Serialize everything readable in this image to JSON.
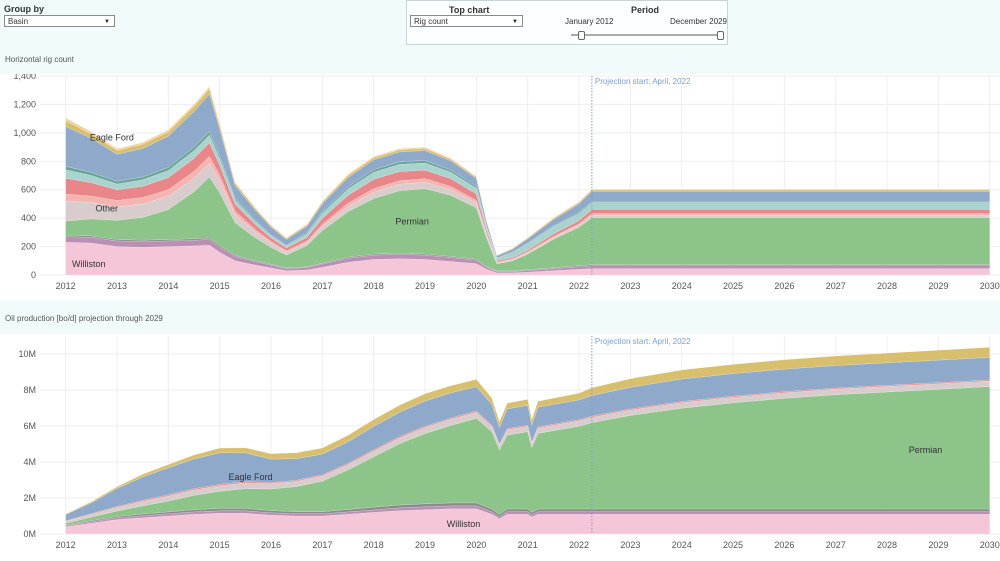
{
  "controls": {
    "group_by_label": "Group by",
    "group_by_value": "Basin",
    "top_chart_label": "Top chart",
    "top_chart_value": "Rig count",
    "period_label": "Period",
    "period_start": "January 2012",
    "period_end": "December 2029",
    "period_range": [
      0,
      1
    ]
  },
  "colors": {
    "background_band": "#f1fbfb",
    "williston": "#f5c5d8",
    "permian": "#8cc48a",
    "eagle_ford": "#8fa9cb",
    "other": "#d8cccc",
    "top": "#d8bf6e",
    "projection_line": "#7a9fd0"
  },
  "chart_data": [
    {
      "type": "area",
      "title": "Horizontal rig count",
      "annotation": "Projection start: April, 2022",
      "projection_x": 2022.25,
      "xlim": [
        2011.5,
        2030.2
      ],
      "ylim": [
        0,
        1400
      ],
      "x_ticks": [
        2012,
        2013,
        2014,
        2015,
        2016,
        2017,
        2018,
        2019,
        2020,
        2021,
        2022,
        2023,
        2024,
        2025,
        2026,
        2027,
        2028,
        2029,
        2030
      ],
      "x_tick_labels": [
        "2012",
        "2013",
        "2014",
        "2015",
        "2016",
        "2017",
        "2018",
        "2019",
        "2020",
        "2021",
        "2022",
        "2023",
        "2024",
        "2025",
        "2026",
        "2027",
        "2028",
        "2029",
        "2030"
      ],
      "y_ticks": [
        0,
        200,
        400,
        600,
        800,
        1000,
        1200,
        1400
      ],
      "y_tick_labels": [
        "0",
        "200",
        "400",
        "600",
        "800",
        "1,000",
        "1,200",
        "1,400"
      ],
      "grid": true,
      "x": [
        2012,
        2012.5,
        2013,
        2013.5,
        2014,
        2014.5,
        2014.8,
        2015,
        2015.3,
        2015.7,
        2016,
        2016.3,
        2016.7,
        2017,
        2017.5,
        2018,
        2018.5,
        2019,
        2019.5,
        2020,
        2020.2,
        2020.4,
        2020.7,
        2021,
        2021.5,
        2022,
        2022.25,
        2023,
        2024,
        2025,
        2026,
        2027,
        2028,
        2029,
        2030
      ],
      "series": [
        {
          "name": "Williston",
          "color": "#f5c5d8",
          "values": [
            230,
            225,
            200,
            195,
            200,
            205,
            210,
            160,
            100,
            70,
            50,
            30,
            35,
            55,
            90,
            110,
            115,
            110,
            95,
            80,
            40,
            15,
            15,
            20,
            30,
            40,
            45,
            45,
            45,
            45,
            45,
            45,
            45,
            45,
            45
          ]
        },
        {
          "name": "",
          "color": "#b98fb3",
          "values": [
            40,
            40,
            40,
            40,
            40,
            40,
            40,
            38,
            30,
            25,
            20,
            15,
            18,
            22,
            28,
            30,
            30,
            30,
            28,
            25,
            15,
            10,
            10,
            12,
            15,
            18,
            20,
            20,
            20,
            20,
            20,
            20,
            20,
            20,
            20
          ]
        },
        {
          "name": "",
          "color": "#8b8b8b",
          "values": [
            10,
            10,
            10,
            10,
            10,
            10,
            10,
            10,
            8,
            6,
            5,
            5,
            5,
            6,
            8,
            8,
            8,
            8,
            8,
            7,
            5,
            4,
            4,
            5,
            6,
            8,
            8,
            8,
            8,
            8,
            8,
            8,
            8,
            8,
            8
          ]
        },
        {
          "name": "Permian",
          "color": "#8cc48a",
          "values": [
            100,
            120,
            135,
            160,
            210,
            330,
            430,
            370,
            230,
            160,
            120,
            90,
            150,
            230,
            320,
            390,
            440,
            460,
            430,
            360,
            200,
            50,
            70,
            110,
            200,
            270,
            330,
            330,
            330,
            330,
            330,
            330,
            330,
            330,
            330
          ]
        },
        {
          "name": "Other",
          "color": "#d8cccc",
          "values": [
            140,
            115,
            95,
            95,
            95,
            95,
            95,
            85,
            55,
            40,
            30,
            20,
            20,
            28,
            35,
            45,
            45,
            45,
            40,
            35,
            20,
            8,
            8,
            10,
            12,
            15,
            18,
            18,
            18,
            18,
            18,
            18,
            18,
            18,
            18
          ]
        },
        {
          "name": "",
          "color": "#f5b4b0",
          "values": [
            50,
            45,
            45,
            45,
            45,
            50,
            50,
            40,
            25,
            18,
            12,
            10,
            12,
            18,
            25,
            25,
            25,
            25,
            22,
            18,
            10,
            4,
            5,
            6,
            8,
            10,
            12,
            12,
            12,
            12,
            12,
            12,
            12,
            12,
            12
          ]
        },
        {
          "name": "",
          "color": "#e8868a",
          "values": [
            110,
            95,
            75,
            80,
            85,
            90,
            95,
            70,
            50,
            35,
            25,
            20,
            25,
            40,
            55,
            65,
            65,
            60,
            55,
            45,
            25,
            10,
            10,
            12,
            18,
            22,
            28,
            28,
            28,
            28,
            28,
            28,
            28,
            28,
            28
          ]
        },
        {
          "name": "",
          "color": "#a9d3cf",
          "values": [
            60,
            50,
            40,
            45,
            50,
            55,
            55,
            45,
            30,
            22,
            15,
            15,
            25,
            35,
            45,
            50,
            50,
            50,
            45,
            40,
            22,
            15,
            35,
            45,
            50,
            50,
            50,
            50,
            50,
            50,
            50,
            50,
            50,
            50,
            50
          ]
        },
        {
          "name": "",
          "color": "#6aa597",
          "values": [
            25,
            22,
            20,
            20,
            22,
            25,
            25,
            20,
            12,
            8,
            5,
            5,
            8,
            12,
            15,
            18,
            18,
            18,
            16,
            14,
            8,
            4,
            4,
            5,
            6,
            8,
            8,
            8,
            8,
            8,
            8,
            8,
            8,
            8,
            8
          ]
        },
        {
          "name": "Eagle Ford",
          "color": "#8fa9cb",
          "values": [
            280,
            240,
            190,
            200,
            220,
            250,
            265,
            190,
            90,
            70,
            55,
            40,
            45,
            55,
            65,
            70,
            70,
            70,
            65,
            55,
            30,
            15,
            20,
            30,
            45,
            60,
            70,
            70,
            70,
            70,
            70,
            70,
            70,
            70,
            70
          ]
        },
        {
          "name": "",
          "color": "#d8bf6e",
          "values": [
            40,
            30,
            25,
            30,
            30,
            35,
            35,
            25,
            15,
            12,
            10,
            8,
            10,
            12,
            15,
            15,
            15,
            15,
            12,
            10,
            6,
            4,
            5,
            6,
            8,
            10,
            10,
            10,
            10,
            10,
            10,
            10,
            10,
            10,
            10
          ]
        },
        {
          "name": "",
          "color": "#f3cf9b",
          "values": [
            20,
            15,
            12,
            12,
            14,
            15,
            15,
            12,
            8,
            6,
            4,
            4,
            5,
            6,
            8,
            8,
            8,
            8,
            6,
            5,
            3,
            2,
            3,
            3,
            4,
            5,
            5,
            5,
            5,
            5,
            5,
            5,
            5,
            5,
            5
          ]
        }
      ],
      "region_labels": [
        {
          "text": "Eagle Ford",
          "x": 2012.9,
          "y": 945
        },
        {
          "text": "Other",
          "x": 2012.8,
          "y": 445
        },
        {
          "text": "Permian",
          "x": 2018.75,
          "y": 355
        },
        {
          "text": "Williston",
          "x": 2012.45,
          "y": 55
        }
      ]
    },
    {
      "type": "area",
      "title": "Oil production [bo/d] projection through 2029",
      "annotation": "Projection start: April, 2022",
      "projection_x": 2022.25,
      "xlim": [
        2011.5,
        2030.2
      ],
      "ylim": [
        0,
        11000000
      ],
      "x_ticks": [
        2012,
        2013,
        2014,
        2015,
        2016,
        2017,
        2018,
        2019,
        2020,
        2021,
        2022,
        2023,
        2024,
        2025,
        2026,
        2027,
        2028,
        2029,
        2030
      ],
      "x_tick_labels": [
        "2012",
        "2013",
        "2014",
        "2015",
        "2016",
        "2017",
        "2018",
        "2019",
        "2020",
        "2021",
        "2022",
        "2023",
        "2024",
        "2025",
        "2026",
        "2027",
        "2028",
        "2029",
        "2030"
      ],
      "y_ticks": [
        0,
        2000000,
        4000000,
        6000000,
        8000000,
        10000000
      ],
      "y_tick_labels": [
        "0M",
        "2M",
        "4M",
        "6M",
        "8M",
        "10M"
      ],
      "grid": true,
      "x": [
        2012,
        2012.5,
        2013,
        2013.5,
        2014,
        2014.5,
        2015,
        2015.5,
        2016,
        2016.5,
        2017,
        2017.5,
        2018,
        2018.5,
        2019,
        2019.5,
        2020,
        2020.3,
        2020.45,
        2020.6,
        2021,
        2021.08,
        2021.2,
        2021.6,
        2022,
        2022.25,
        2023,
        2024,
        2025,
        2026,
        2027,
        2028,
        2029,
        2030
      ],
      "series": [
        {
          "name": "Williston",
          "color": "#f5c5d8",
          "values": [
            400000,
            600000,
            800000,
            900000,
            1000000,
            1100000,
            1150000,
            1150000,
            1050000,
            1000000,
            1000000,
            1100000,
            1200000,
            1300000,
            1350000,
            1400000,
            1400000,
            1100000,
            850000,
            1100000,
            1100000,
            950000,
            1100000,
            1100000,
            1100000,
            1100000,
            1100000,
            1100000,
            1100000,
            1100000,
            1100000,
            1100000,
            1100000,
            1100000
          ]
        },
        {
          "name": "",
          "color": "#b98fb3",
          "values": [
            60000,
            80000,
            100000,
            110000,
            120000,
            130000,
            140000,
            140000,
            130000,
            120000,
            120000,
            130000,
            140000,
            150000,
            160000,
            160000,
            160000,
            140000,
            110000,
            140000,
            140000,
            120000,
            140000,
            140000,
            140000,
            140000,
            140000,
            140000,
            140000,
            140000,
            140000,
            140000,
            140000,
            140000
          ]
        },
        {
          "name": "",
          "color": "#8b8b8b",
          "values": [
            40000,
            60000,
            80000,
            100000,
            110000,
            120000,
            130000,
            130000,
            120000,
            120000,
            120000,
            130000,
            150000,
            160000,
            170000,
            170000,
            170000,
            150000,
            120000,
            150000,
            150000,
            130000,
            150000,
            150000,
            150000,
            150000,
            150000,
            150000,
            150000,
            150000,
            150000,
            150000,
            150000,
            150000
          ]
        },
        {
          "name": "Permian",
          "color": "#8cc48a",
          "values": [
            100000,
            200000,
            300000,
            450000,
            600000,
            800000,
            950000,
            1100000,
            1200000,
            1400000,
            1700000,
            2200000,
            2800000,
            3400000,
            3900000,
            4300000,
            4700000,
            4300000,
            3600000,
            4100000,
            4300000,
            3600000,
            4200000,
            4400000,
            4600000,
            4800000,
            5200000,
            5600000,
            5900000,
            6150000,
            6350000,
            6500000,
            6650000,
            6800000
          ]
        },
        {
          "name": "",
          "color": "#d8cccc",
          "values": [
            100000,
            150000,
            200000,
            250000,
            280000,
            300000,
            320000,
            320000,
            300000,
            290000,
            290000,
            300000,
            320000,
            330000,
            340000,
            340000,
            340000,
            300000,
            250000,
            300000,
            300000,
            250000,
            300000,
            300000,
            300000,
            300000,
            300000,
            310000,
            310000,
            310000,
            310000,
            310000,
            310000,
            310000
          ]
        },
        {
          "name": "",
          "color": "#e8868a",
          "values": [
            30000,
            40000,
            50000,
            60000,
            70000,
            70000,
            70000,
            70000,
            60000,
            60000,
            60000,
            60000,
            70000,
            70000,
            70000,
            70000,
            70000,
            60000,
            50000,
            60000,
            60000,
            50000,
            60000,
            60000,
            60000,
            60000,
            60000,
            60000,
            60000,
            60000,
            60000,
            60000,
            60000,
            60000
          ]
        },
        {
          "name": "Eagle Ford",
          "color": "#8fa9cb",
          "values": [
            350000,
            600000,
            1000000,
            1300000,
            1500000,
            1650000,
            1750000,
            1600000,
            1300000,
            1200000,
            1150000,
            1200000,
            1300000,
            1350000,
            1400000,
            1400000,
            1350000,
            1150000,
            950000,
            1100000,
            1100000,
            950000,
            1100000,
            1100000,
            1100000,
            1150000,
            1200000,
            1250000,
            1250000,
            1250000,
            1250000,
            1250000,
            1250000,
            1250000
          ]
        },
        {
          "name": "",
          "color": "#d8bf6e",
          "values": [
            30000,
            60000,
            100000,
            150000,
            180000,
            220000,
            260000,
            280000,
            300000,
            320000,
            340000,
            360000,
            380000,
            390000,
            400000,
            400000,
            400000,
            350000,
            300000,
            320000,
            330000,
            300000,
            330000,
            350000,
            380000,
            420000,
            480000,
            500000,
            510000,
            520000,
            530000,
            540000,
            550000,
            560000
          ]
        }
      ],
      "region_labels": [
        {
          "text": "Eagle Ford",
          "x": 2015.6,
          "y": 3000000
        },
        {
          "text": "Permian",
          "x": 2028.75,
          "y": 4500000
        },
        {
          "text": "Williston",
          "x": 2019.75,
          "y": 380000
        }
      ]
    }
  ]
}
